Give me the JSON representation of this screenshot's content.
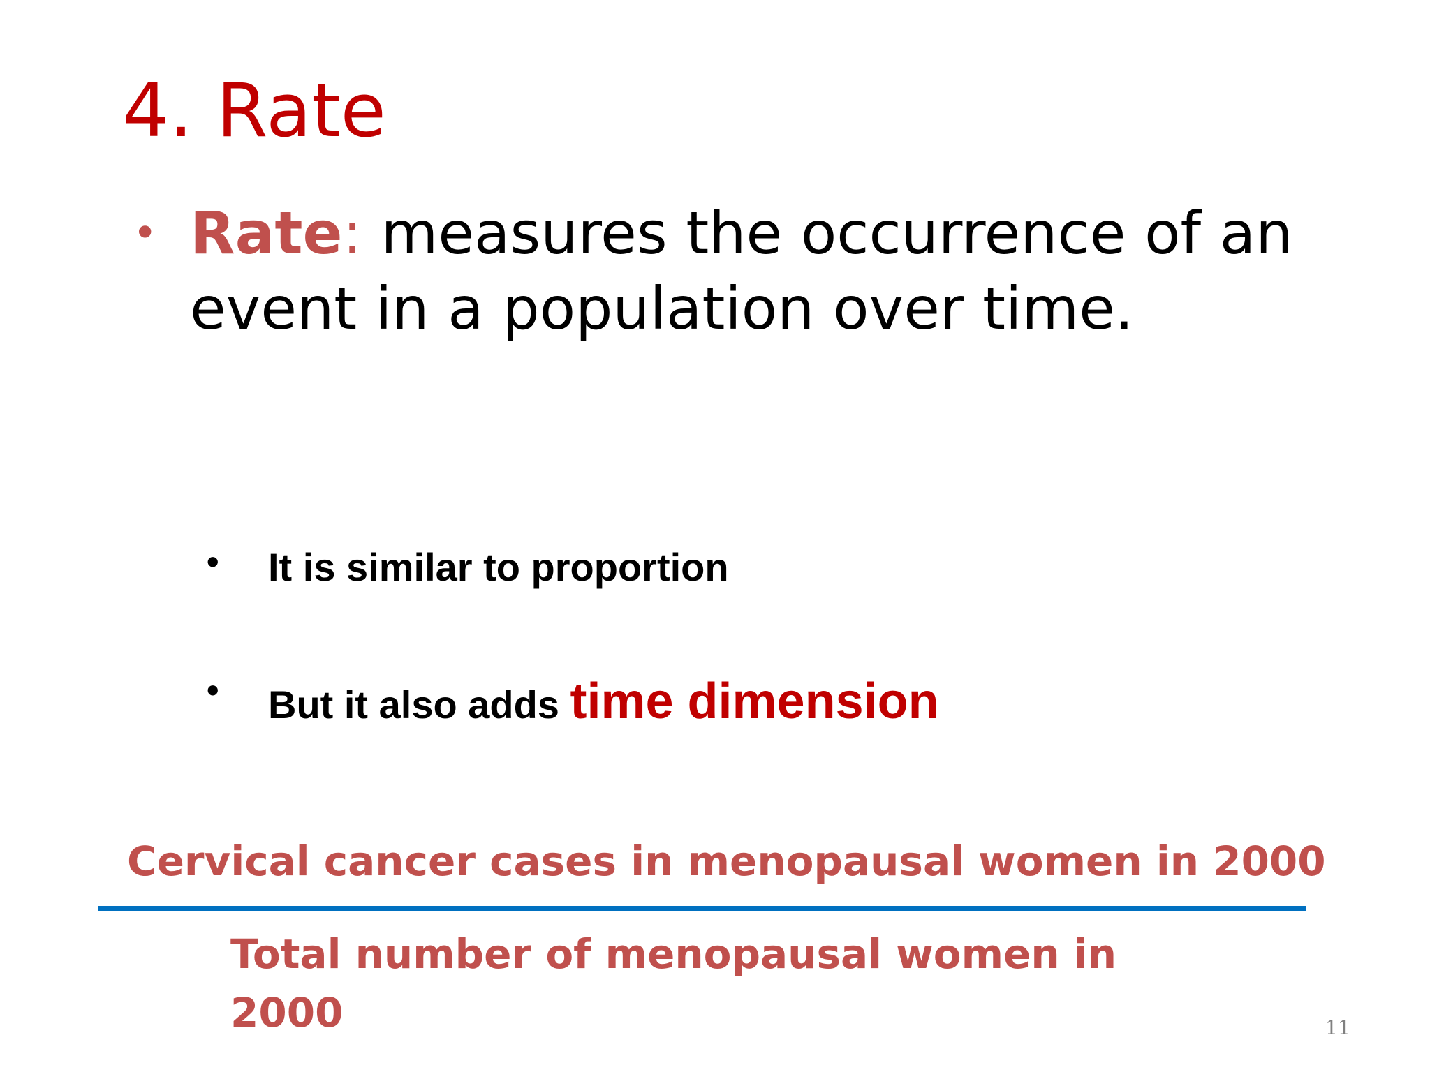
{
  "slide": {
    "title": "4. Rate",
    "main_bullet": {
      "term": "Rate",
      "colon": ":",
      "definition": " measures the occurrence of an event in a population over time."
    },
    "sub_bullets": [
      {
        "text": "It is similar to proportion",
        "emphasis": ""
      },
      {
        "text": "But it also adds ",
        "emphasis": "time dimension"
      }
    ],
    "fraction": {
      "numerator": "Cervical cancer cases in menopausal women in 2000",
      "denominator": "Total number of menopausal women in 2000"
    },
    "page_number": "11",
    "colors": {
      "title": "#c00000",
      "term": "#c0504d",
      "fraction_text": "#c0504d",
      "fraction_line": "#0070c0"
    }
  }
}
